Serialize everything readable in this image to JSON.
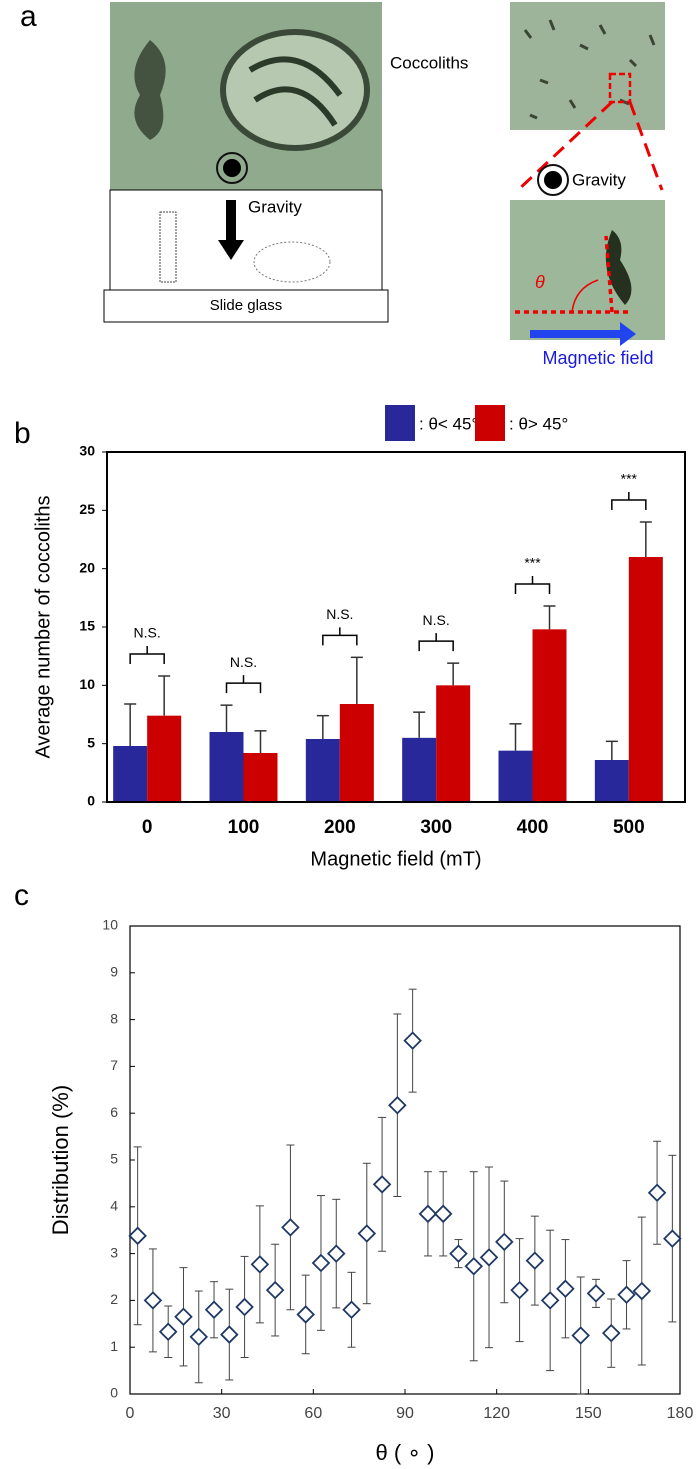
{
  "panel_labels": [
    "a",
    "b",
    "c"
  ],
  "panel_a": {
    "coccoliths": "Coccoliths",
    "gravity_left": "Gravity",
    "slide_glass": "Slide glass",
    "gravity_right": "Gravity",
    "theta": "θ",
    "magnetic_field": "Magnetic field"
  },
  "chart_data": [
    {
      "type": "bar",
      "categories": [
        "0",
        "100",
        "200",
        "300",
        "400",
        "500"
      ],
      "series": [
        {
          "name": ": θ< 45°",
          "color": "#28289a",
          "values": [
            4.8,
            6.0,
            5.4,
            5.5,
            4.4,
            3.6
          ],
          "errors": [
            3.6,
            2.3,
            2.0,
            2.2,
            2.3,
            1.6
          ]
        },
        {
          "name": ":  θ> 45°",
          "color": "#cc0000",
          "values": [
            7.4,
            4.2,
            8.4,
            10.0,
            14.8,
            21.0
          ],
          "errors": [
            3.4,
            1.9,
            4.0,
            1.9,
            2.0,
            3.0
          ]
        }
      ],
      "significance": [
        "N.S.",
        "N.S.",
        "N.S.",
        "N.S.",
        "***",
        "***"
      ],
      "xlabel": "Magnetic field (mT)",
      "ylabel": "Average number of coccoliths",
      "ylim": [
        0,
        30
      ],
      "yticks": [
        0,
        5,
        10,
        15,
        20,
        25,
        30
      ]
    },
    {
      "type": "scatter",
      "x": [
        2.5,
        7.5,
        12.5,
        17.5,
        22.5,
        27.5,
        32.5,
        37.5,
        42.5,
        47.5,
        52.5,
        57.5,
        62.5,
        67.5,
        72.5,
        77.5,
        82.5,
        87.5,
        92.5,
        97.5,
        102.5,
        107.5,
        112.5,
        117.5,
        122.5,
        127.5,
        132.5,
        137.5,
        142.5,
        147.5,
        152.5,
        157.5,
        162.5,
        167.5,
        172.5,
        177.5
      ],
      "values": [
        3.38,
        2.0,
        1.33,
        1.65,
        1.22,
        1.8,
        1.27,
        1.86,
        2.77,
        2.22,
        3.56,
        1.7,
        2.8,
        3.0,
        1.8,
        3.43,
        4.48,
        6.17,
        7.55,
        3.85,
        3.85,
        3.0,
        2.73,
        2.92,
        3.25,
        2.22,
        2.85,
        2.0,
        2.25,
        1.25,
        2.15,
        1.3,
        2.12,
        2.2,
        4.3,
        3.32
      ],
      "errors": [
        1.9,
        1.1,
        0.55,
        1.05,
        0.98,
        0.6,
        0.97,
        1.08,
        1.25,
        0.98,
        1.76,
        0.84,
        1.44,
        1.16,
        0.8,
        1.5,
        1.43,
        1.95,
        1.1,
        0.9,
        0.9,
        0.3,
        2.02,
        1.93,
        1.3,
        1.1,
        0.95,
        1.5,
        1.05,
        1.25,
        0.3,
        0.73,
        0.73,
        1.58,
        1.1,
        1.78
      ],
      "color": "#1f3864",
      "xlabel": "θ ( ∘ )",
      "ylabel": "Distribution  (%)",
      "xlim": [
        0,
        180
      ],
      "xticks": [
        0,
        30,
        60,
        90,
        120,
        150,
        180
      ],
      "ylim": [
        0,
        10
      ],
      "yticks": [
        0,
        1,
        2,
        3,
        4,
        5,
        6,
        7,
        8,
        9,
        10
      ]
    }
  ]
}
